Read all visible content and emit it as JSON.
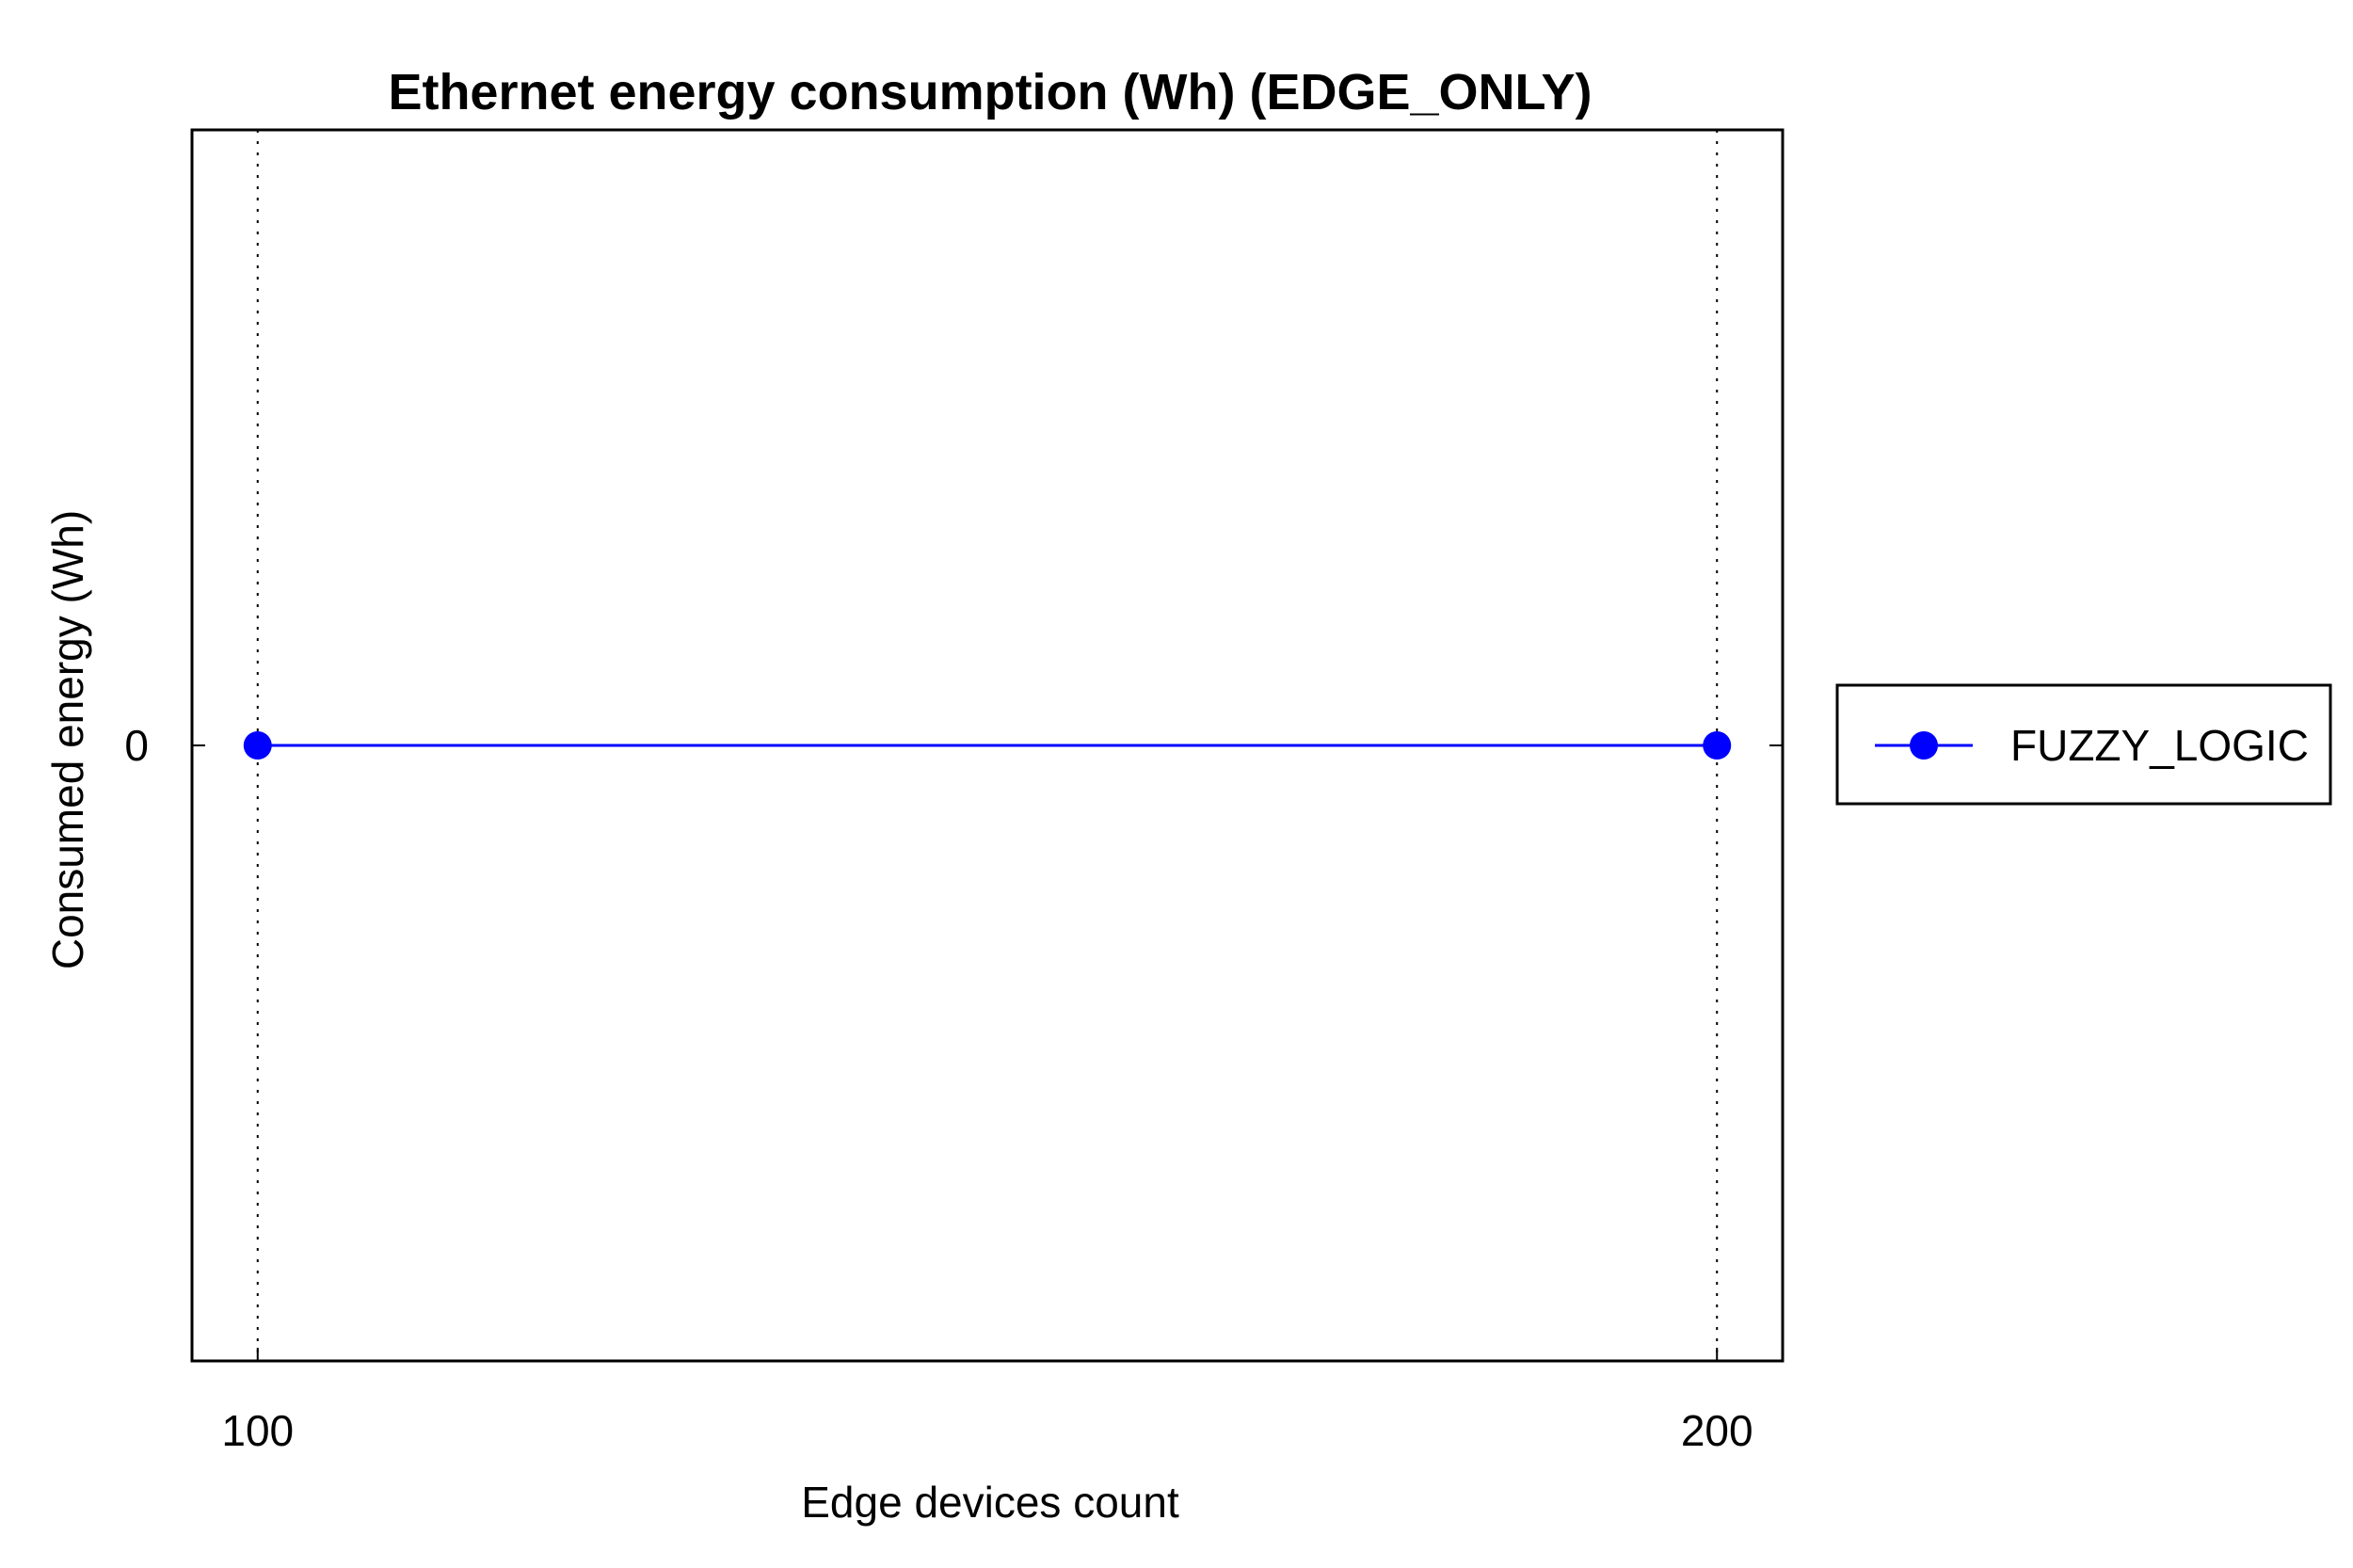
{
  "chart_data": {
    "type": "line",
    "title": "Ethernet energy consumption (Wh) (EDGE_ONLY)",
    "xlabel": "Edge devices count",
    "ylabel": "Consumed energy (Wh)",
    "x_ticks": [
      "100",
      "200"
    ],
    "y_ticks": [
      "0"
    ],
    "xlim": [
      95.5,
      204.5
    ],
    "ylim": [
      -1,
      1
    ],
    "grid": "x-dotted",
    "legend_position": "outside-right",
    "series": [
      {
        "name": "FUZZY_LOGIC",
        "color": "#0000ff",
        "marker": "circle",
        "x": [
          100,
          200
        ],
        "y": [
          0,
          0
        ]
      }
    ]
  }
}
